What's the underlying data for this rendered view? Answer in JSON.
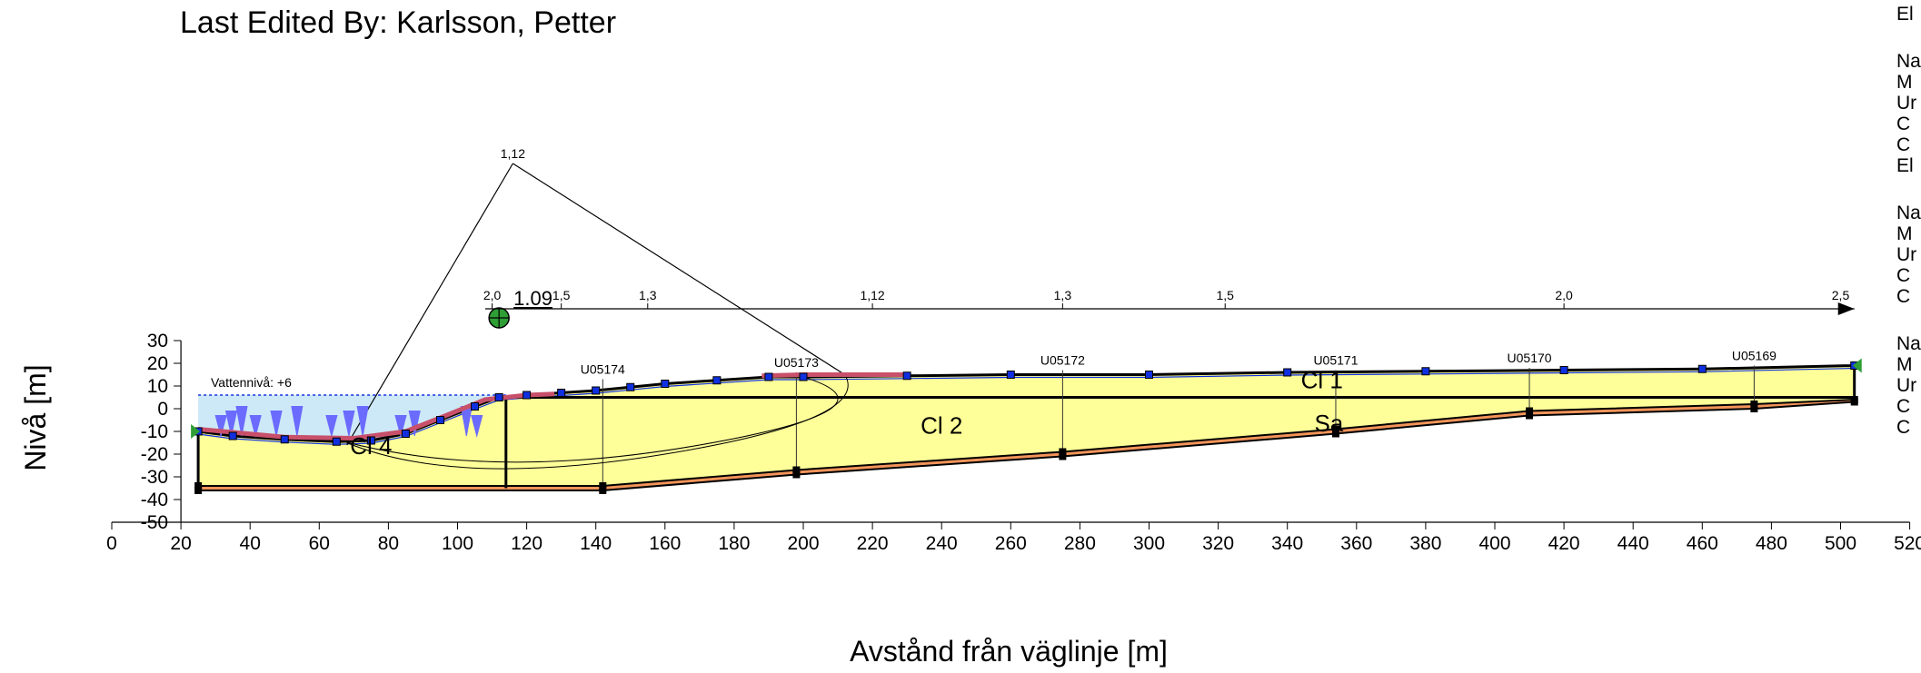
{
  "header": {
    "title": "Last Edited By: Karlsson, Petter"
  },
  "axes": {
    "xlabel": "Avstånd från väglinje [m]",
    "ylabel": "Nivå [m]",
    "xlim": [
      0,
      520
    ],
    "ylim": [
      -50,
      30
    ],
    "xticks": [
      0,
      20,
      40,
      60,
      80,
      100,
      120,
      140,
      160,
      180,
      200,
      220,
      240,
      260,
      280,
      300,
      320,
      340,
      360,
      380,
      400,
      420,
      440,
      460,
      480,
      500,
      520
    ],
    "yticks": [
      -50,
      -40,
      -30,
      -20,
      -10,
      0,
      10,
      20,
      30
    ]
  },
  "water": {
    "label": "Vattennivå: +6",
    "level": 6,
    "x_range": [
      25,
      115
    ],
    "color": "#cde9f7"
  },
  "materials": [
    {
      "name": "Cl 1",
      "x": 350,
      "y": 9
    },
    {
      "name": "Cl 2",
      "x": 240,
      "y": -11
    },
    {
      "name": "Cl 4",
      "x": 75,
      "y": -20
    },
    {
      "name": "Sa",
      "x": 352,
      "y": -10
    }
  ],
  "boreholes": [
    {
      "id": "U05174",
      "x": 142,
      "top": 13,
      "bottom": -36
    },
    {
      "id": "U05173",
      "x": 198,
      "top": 16,
      "bottom": -28
    },
    {
      "id": "U05172",
      "x": 275,
      "top": 17,
      "bottom": -22
    },
    {
      "id": "U05171",
      "x": 354,
      "top": 17,
      "bottom": -8
    },
    {
      "id": "U05170",
      "x": 410,
      "top": 18,
      "bottom": 0
    },
    {
      "id": "U05169",
      "x": 475,
      "top": 19,
      "bottom": 2
    }
  ],
  "critical_center": {
    "label": "1.09",
    "x": 112,
    "y": 40
  },
  "fos_markers": {
    "x_start": 108,
    "x_end": 504,
    "labels": [
      {
        "text": "2,0",
        "x": 110
      },
      {
        "text": "1,5",
        "x": 130
      },
      {
        "text": "1,3",
        "x": 155
      },
      {
        "text": "1,12",
        "x": 220
      },
      {
        "text": "1,3",
        "x": 275
      },
      {
        "text": "1,5",
        "x": 322
      },
      {
        "text": "2,0",
        "x": 420
      },
      {
        "text": "2,5",
        "x": 500
      }
    ]
  },
  "grid_apex": {
    "label": "1,12",
    "x": 116,
    "y": 108
  },
  "legend_fragments": [
    {
      "text": "El",
      "row": 0
    },
    {
      "text": "Na",
      "row": 1
    },
    {
      "text": "M",
      "row": 2
    },
    {
      "text": "Ur",
      "row": 3
    },
    {
      "text": "C",
      "row": 4
    },
    {
      "text": "C",
      "row": 5
    },
    {
      "text": "El",
      "row": 6
    },
    {
      "text": "Na",
      "row": 7
    },
    {
      "text": "M",
      "row": 8
    },
    {
      "text": "Ur",
      "row": 9
    },
    {
      "text": "C",
      "row": 10
    },
    {
      "text": "C",
      "row": 11
    },
    {
      "text": "Na",
      "row": 12
    },
    {
      "text": "M",
      "row": 13
    },
    {
      "text": "Ur",
      "row": 14
    },
    {
      "text": "C",
      "row": 15
    },
    {
      "text": "C",
      "row": 16
    }
  ],
  "colors": {
    "clay": "#ffff99",
    "sand_band": "#f2945a",
    "load": "#6b6bff",
    "reinforcement": "#c8506a",
    "node": "#000000",
    "surface_node": "#1030e0",
    "center": "#2e9e35"
  }
}
